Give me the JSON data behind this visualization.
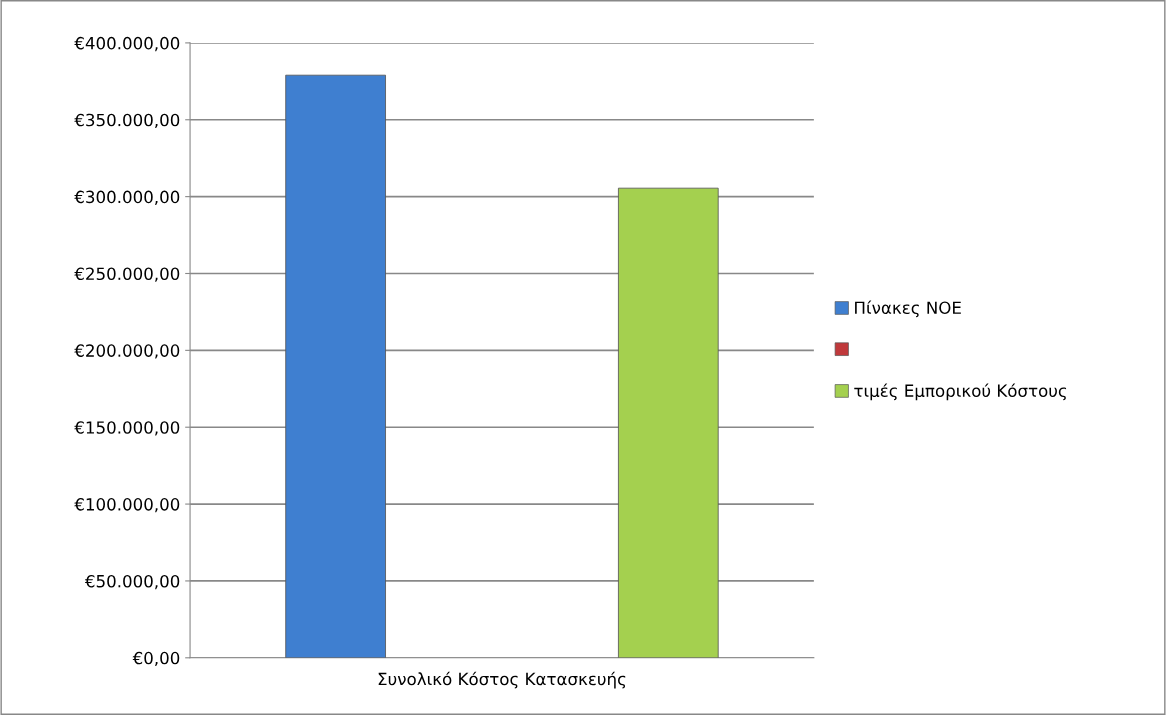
{
  "chart_data": {
    "type": "bar",
    "categories": [
      "Συνολικό Κόστος Κατασκευής"
    ],
    "series": [
      {
        "name": "Πίνακες ΝΟΕ",
        "color": "#3f7fd0",
        "values": [
          379000
        ]
      },
      {
        "color": "#c0393b",
        "values": [
          null
        ]
      },
      {
        "name": "τιμές Εμπορικού Κόστους",
        "color": "#a4d04f",
        "values": [
          305500
        ]
      }
    ],
    "ylim": [
      0,
      400000
    ],
    "yticks": [
      {
        "value": 0,
        "label": "€0,00"
      },
      {
        "value": 50000,
        "label": "€50.000,00"
      },
      {
        "value": 100000,
        "label": "€100.000,00"
      },
      {
        "value": 150000,
        "label": "€150.000,00"
      },
      {
        "value": 200000,
        "label": "€200.000,00"
      },
      {
        "value": 250000,
        "label": "€250.000,00"
      },
      {
        "value": 300000,
        "label": "€300.000,00"
      },
      {
        "value": 350000,
        "label": "€350.000,00"
      },
      {
        "value": 400000,
        "label": "€400.000,00"
      }
    ],
    "grid": "y",
    "legend": "right"
  }
}
